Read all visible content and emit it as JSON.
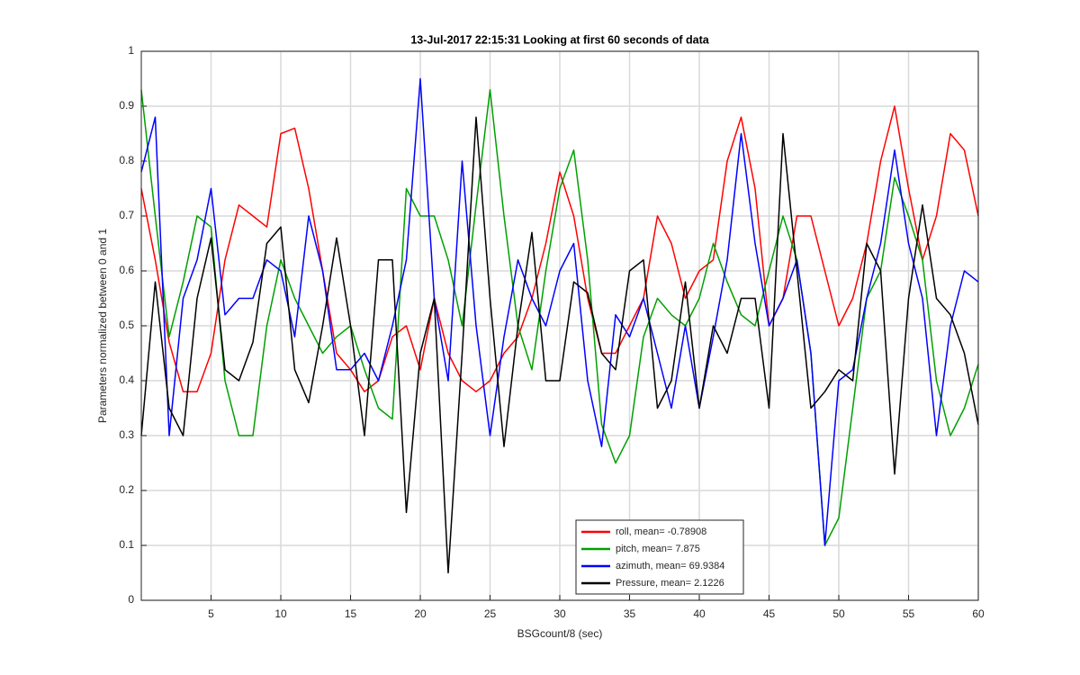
{
  "chart_data": {
    "type": "line",
    "title": "13-Jul-2017 22:15:31 Looking at first 60 seconds of data",
    "xlabel": "BSGcount/8 (sec)",
    "ylabel": "Parameters normalized between 0 and 1",
    "x": [
      0,
      1,
      2,
      3,
      4,
      5,
      6,
      7,
      8,
      9,
      10,
      11,
      12,
      13,
      14,
      15,
      16,
      17,
      18,
      19,
      20,
      21,
      22,
      23,
      24,
      25,
      26,
      27,
      28,
      29,
      30,
      31,
      32,
      33,
      34,
      35,
      36,
      37,
      38,
      39,
      40,
      41,
      42,
      43,
      44,
      45,
      46,
      47,
      48,
      49,
      50,
      51,
      52,
      53,
      54,
      55,
      56,
      57,
      58,
      59,
      60
    ],
    "series": [
      {
        "name": "roll, mean= -0.78908",
        "color": "#ff0000",
        "values": [
          0.75,
          0.62,
          0.47,
          0.38,
          0.38,
          0.45,
          0.62,
          0.72,
          0.7,
          0.68,
          0.85,
          0.86,
          0.75,
          0.6,
          0.45,
          0.42,
          0.38,
          0.4,
          0.48,
          0.5,
          0.42,
          0.55,
          0.45,
          0.4,
          0.38,
          0.4,
          0.45,
          0.48,
          0.55,
          0.65,
          0.78,
          0.7,
          0.55,
          0.45,
          0.45,
          0.5,
          0.55,
          0.7,
          0.65,
          0.55,
          0.6,
          0.62,
          0.8,
          0.88,
          0.75,
          0.5,
          0.55,
          0.7,
          0.7,
          0.6,
          0.5,
          0.55,
          0.65,
          0.8,
          0.9,
          0.75,
          0.62,
          0.7,
          0.85,
          0.82,
          0.7
        ]
      },
      {
        "name": "pitch, mean= 7.875",
        "color": "#00a000",
        "values": [
          0.93,
          0.7,
          0.48,
          0.58,
          0.7,
          0.68,
          0.4,
          0.3,
          0.3,
          0.5,
          0.62,
          0.55,
          0.5,
          0.45,
          0.48,
          0.5,
          0.42,
          0.35,
          0.33,
          0.75,
          0.7,
          0.7,
          0.62,
          0.5,
          0.72,
          0.93,
          0.7,
          0.5,
          0.42,
          0.6,
          0.75,
          0.82,
          0.62,
          0.32,
          0.25,
          0.3,
          0.48,
          0.55,
          0.52,
          0.5,
          0.55,
          0.65,
          0.58,
          0.52,
          0.5,
          0.6,
          0.7,
          0.62,
          0.45,
          0.1,
          0.15,
          0.35,
          0.55,
          0.6,
          0.77,
          0.7,
          0.62,
          0.4,
          0.3,
          0.35,
          0.43
        ]
      },
      {
        "name": "azimuth, mean= 69.9384",
        "color": "#0000ff",
        "values": [
          0.78,
          0.88,
          0.3,
          0.55,
          0.62,
          0.75,
          0.52,
          0.55,
          0.55,
          0.62,
          0.6,
          0.48,
          0.7,
          0.6,
          0.42,
          0.42,
          0.45,
          0.4,
          0.5,
          0.62,
          0.95,
          0.55,
          0.4,
          0.8,
          0.5,
          0.3,
          0.48,
          0.62,
          0.55,
          0.5,
          0.6,
          0.65,
          0.4,
          0.28,
          0.52,
          0.48,
          0.55,
          0.45,
          0.35,
          0.5,
          0.35,
          0.48,
          0.62,
          0.85,
          0.65,
          0.5,
          0.55,
          0.62,
          0.45,
          0.1,
          0.4,
          0.42,
          0.55,
          0.65,
          0.82,
          0.65,
          0.55,
          0.3,
          0.5,
          0.6,
          0.58
        ]
      },
      {
        "name": "Pressure, mean= 2.1226",
        "color": "#000000",
        "values": [
          0.3,
          0.58,
          0.35,
          0.3,
          0.55,
          0.66,
          0.42,
          0.4,
          0.47,
          0.65,
          0.68,
          0.42,
          0.36,
          0.5,
          0.66,
          0.5,
          0.3,
          0.62,
          0.62,
          0.16,
          0.45,
          0.55,
          0.05,
          0.45,
          0.88,
          0.55,
          0.28,
          0.5,
          0.67,
          0.4,
          0.4,
          0.58,
          0.56,
          0.45,
          0.42,
          0.6,
          0.62,
          0.35,
          0.4,
          0.58,
          0.35,
          0.5,
          0.45,
          0.55,
          0.55,
          0.35,
          0.85,
          0.6,
          0.35,
          0.38,
          0.42,
          0.4,
          0.65,
          0.6,
          0.23,
          0.55,
          0.72,
          0.55,
          0.52,
          0.45,
          0.32
        ]
      }
    ],
    "xlim": [
      0,
      60
    ],
    "xticks": [
      5,
      10,
      15,
      20,
      25,
      30,
      35,
      40,
      45,
      50,
      55,
      60
    ],
    "ylim": [
      0,
      1
    ],
    "yticks": [
      0,
      0.1,
      0.2,
      0.3,
      0.4,
      0.5,
      0.6,
      0.7,
      0.8,
      0.9,
      1
    ],
    "grid": true,
    "legend_loc": "south"
  }
}
